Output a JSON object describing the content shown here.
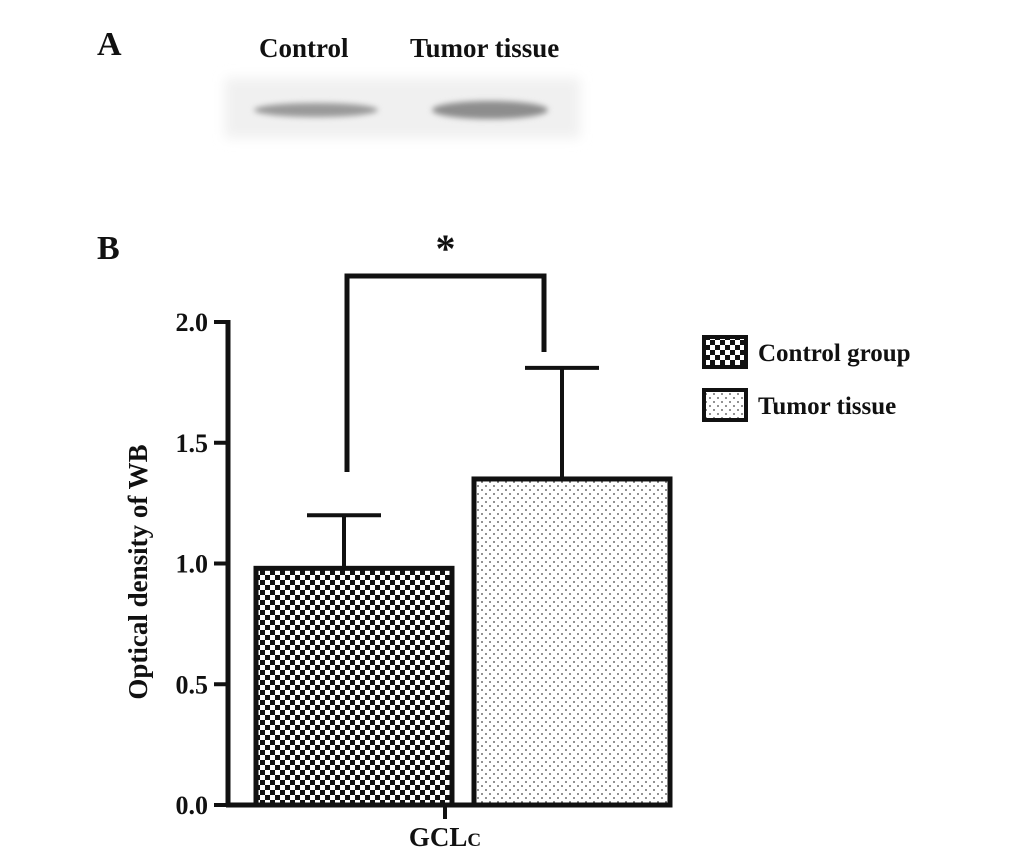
{
  "panels": {
    "a_label": "A",
    "b_label": "B"
  },
  "blot": {
    "lanes": [
      "Control",
      "Tumor tissue"
    ]
  },
  "chart_data": {
    "type": "bar",
    "categories": [
      "GCLc"
    ],
    "category_label_main": "GCL",
    "category_label_sub": "C",
    "ylabel": "Optical density of WB",
    "xlabel": "",
    "ylim": [
      0,
      2.0
    ],
    "yticks": [
      0.0,
      0.5,
      1.0,
      1.5,
      2.0
    ],
    "ytick_labels": [
      "0.0",
      "0.5",
      "1.0",
      "1.5",
      "2.0"
    ],
    "series": [
      {
        "name": "Control group",
        "values": [
          0.98
        ],
        "error": [
          0.22
        ],
        "pattern": "checker"
      },
      {
        "name": "Tumor tissue",
        "values": [
          1.35
        ],
        "error": [
          0.46
        ],
        "pattern": "dots"
      }
    ],
    "significance": {
      "label": "*",
      "between": [
        "Control group",
        "Tumor tissue"
      ]
    },
    "legend_position": "right"
  }
}
